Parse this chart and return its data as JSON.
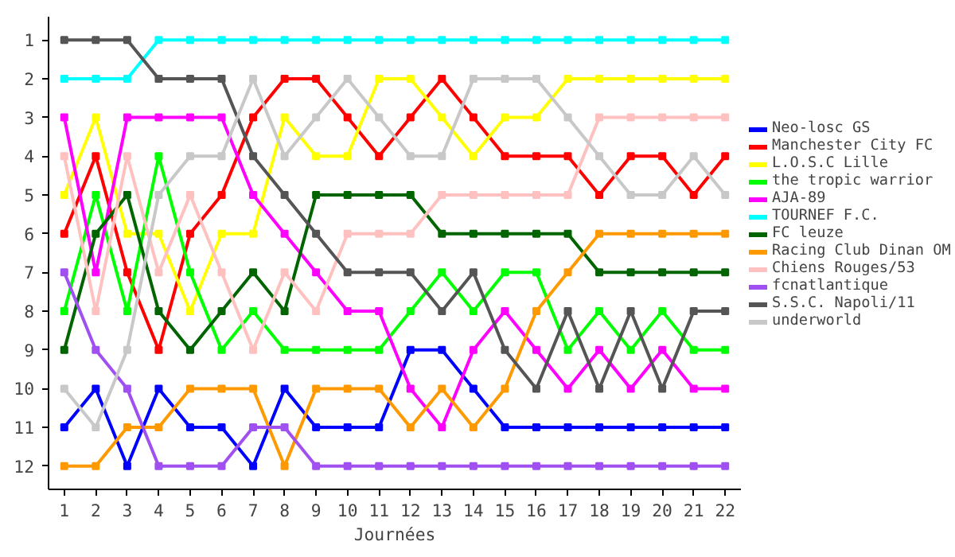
{
  "chart_data": {
    "type": "line",
    "xlabel": "Journées",
    "x": [
      1,
      2,
      3,
      4,
      5,
      6,
      7,
      8,
      9,
      10,
      11,
      12,
      13,
      14,
      15,
      16,
      17,
      18,
      19,
      20,
      21,
      22
    ],
    "xlim": [
      0.5,
      22.5
    ],
    "xticks": [
      1,
      2,
      3,
      4,
      5,
      6,
      7,
      8,
      9,
      10,
      11,
      12,
      13,
      14,
      15,
      16,
      17,
      18,
      19,
      20,
      21,
      22
    ],
    "ylim": [
      12.6,
      0.4
    ],
    "yticks": [
      1,
      2,
      3,
      4,
      5,
      6,
      7,
      8,
      9,
      10,
      11,
      12
    ],
    "grid": false,
    "legend": "right",
    "marker": "square",
    "line_style": "solid",
    "series": [
      {
        "name": "Neo-losc GS",
        "color": "#0000ff",
        "values": [
          11,
          10,
          12,
          10,
          11,
          11,
          12,
          10,
          11,
          11,
          11,
          9,
          9,
          10,
          11,
          11,
          11,
          11,
          11,
          11,
          11,
          11
        ]
      },
      {
        "name": "Manchester City FC",
        "color": "#ff0000",
        "values": [
          6,
          4,
          7,
          9,
          6,
          5,
          3,
          2,
          2,
          3,
          4,
          3,
          2,
          3,
          4,
          4,
          4,
          5,
          4,
          4,
          5,
          4
        ]
      },
      {
        "name": "L.O.S.C Lille",
        "color": "#ffff00",
        "values": [
          5,
          3,
          6,
          6,
          8,
          6,
          6,
          3,
          4,
          4,
          2,
          2,
          3,
          4,
          3,
          3,
          2,
          2,
          2,
          2,
          2,
          2
        ]
      },
      {
        "name": "the tropic warrior",
        "color": "#00ff00",
        "values": [
          8,
          5,
          8,
          4,
          7,
          9,
          8,
          9,
          9,
          9,
          9,
          8,
          7,
          8,
          7,
          7,
          9,
          8,
          9,
          8,
          9,
          9
        ]
      },
      {
        "name": "AJA-89",
        "color": "#ff00ff",
        "values": [
          3,
          7,
          3,
          3,
          3,
          3,
          5,
          6,
          7,
          8,
          8,
          10,
          11,
          9,
          8,
          9,
          10,
          9,
          10,
          9,
          10,
          10
        ]
      },
      {
        "name": "TOURNEF F.C.",
        "color": "#00ffff",
        "values": [
          2,
          2,
          2,
          1,
          1,
          1,
          1,
          1,
          1,
          1,
          1,
          1,
          1,
          1,
          1,
          1,
          1,
          1,
          1,
          1,
          1,
          1
        ]
      },
      {
        "name": "FC leuze",
        "color": "#006400",
        "values": [
          9,
          6,
          5,
          8,
          9,
          8,
          7,
          8,
          5,
          5,
          5,
          5,
          6,
          6,
          6,
          6,
          6,
          7,
          7,
          7,
          7,
          7
        ]
      },
      {
        "name": "Racing Club Dinan OM",
        "color": "#ff9900",
        "values": [
          12,
          12,
          11,
          11,
          10,
          10,
          10,
          12,
          10,
          10,
          10,
          11,
          10,
          11,
          10,
          8,
          7,
          6,
          6,
          6,
          6,
          6
        ]
      },
      {
        "name": "Chiens Rouges/53",
        "color": "#ffc0c0",
        "values": [
          4,
          8,
          4,
          7,
          5,
          7,
          9,
          7,
          8,
          6,
          6,
          6,
          5,
          5,
          5,
          5,
          5,
          3,
          3,
          3,
          3,
          3
        ]
      },
      {
        "name": "fcnatlantique",
        "color": "#a050f0",
        "values": [
          7,
          9,
          10,
          12,
          12,
          12,
          11,
          11,
          12,
          12,
          12,
          12,
          12,
          12,
          12,
          12,
          12,
          12,
          12,
          12,
          12,
          12
        ]
      },
      {
        "name": "S.S.C. Napoli/11",
        "color": "#555555",
        "values": [
          1,
          1,
          1,
          2,
          2,
          2,
          4,
          5,
          6,
          7,
          7,
          7,
          8,
          7,
          9,
          10,
          8,
          10,
          8,
          10,
          8,
          8
        ]
      },
      {
        "name": "underworld",
        "color": "#c8c8c8",
        "values": [
          10,
          11,
          9,
          5,
          4,
          4,
          2,
          4,
          3,
          2,
          3,
          4,
          4,
          2,
          2,
          2,
          3,
          4,
          5,
          5,
          4,
          5
        ]
      }
    ]
  }
}
